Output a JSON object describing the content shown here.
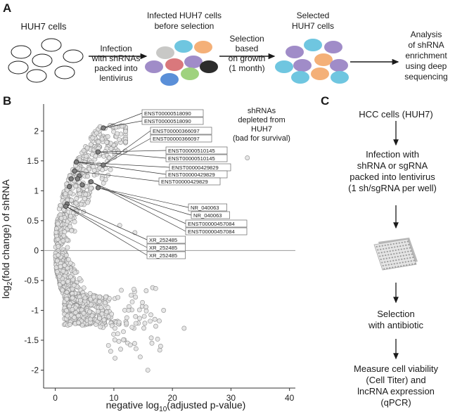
{
  "panel_a": {
    "label": "A",
    "huh7_cells": "HUH7 cells",
    "infection": [
      "Infection",
      "with shRNAs",
      "packed into",
      "lentivirus"
    ],
    "infected_title": [
      "Infected HUH7 cells",
      "before selection"
    ],
    "selection": [
      "Selection",
      "based",
      "on growth",
      "(1 month)"
    ],
    "selected_title": [
      "Selected",
      "HUH7 cells"
    ],
    "analysis": [
      "Analysis",
      "of shRNA",
      "enrichment",
      "using deep",
      "sequencing"
    ]
  },
  "panel_b": {
    "label": "B",
    "annotation": [
      "shRNAs",
      "depleted from HUH7",
      "(bad for survival)"
    ],
    "gene_labels": [
      "ENST00000518090",
      "ENST00000518090",
      "ENST00000366097",
      "ENST00000366097",
      "ENST00000510145",
      "ENST00000510145",
      "ENST00000429829",
      "ENST00000429829",
      "ENST00000429829",
      "NR_040063",
      "NR_040063",
      "ENST00000457084",
      "ENST00000457084",
      "XR_252485",
      "XR_252485",
      "XR_252485"
    ]
  },
  "chart_data": {
    "type": "scatter",
    "title": "",
    "xlabel": "negative log10(adjusted p-value)",
    "ylabel": "log2(fold change) of shRNA",
    "xlim": [
      -2,
      41
    ],
    "ylim": [
      -2.3,
      2.45
    ],
    "xticks": [
      "0",
      "10",
      "20",
      "30",
      "40"
    ],
    "yticks": [
      "2",
      "1.5",
      "1",
      "0.5",
      "0",
      "-0.5",
      "-1",
      "-1.5",
      "-2"
    ],
    "highlighted": [
      {
        "x": 8.2,
        "y": 2.05
      },
      {
        "x": 7.3,
        "y": 1.65
      },
      {
        "x": 8.2,
        "y": 1.43
      },
      {
        "x": 3.6,
        "y": 1.48
      },
      {
        "x": 3.3,
        "y": 1.33
      },
      {
        "x": 2.7,
        "y": 1.2
      },
      {
        "x": 4.1,
        "y": 1.25
      },
      {
        "x": 6.1,
        "y": 1.15
      },
      {
        "x": 4.6,
        "y": 1.1
      },
      {
        "x": 7.3,
        "y": 1.05
      },
      {
        "x": 2.0,
        "y": 0.78
      },
      {
        "x": 1.8,
        "y": 0.74
      },
      {
        "x": 3.8,
        "y": 1.2
      },
      {
        "x": 2.4,
        "y": 1.07
      }
    ],
    "outliers": [
      {
        "x": 32.8,
        "y": 1.55
      },
      {
        "x": 22.0,
        "y": -1.3
      },
      {
        "x": 17.0,
        "y": -1.15
      },
      {
        "x": 16.5,
        "y": -1.55
      },
      {
        "x": 15.8,
        "y": -2.0
      },
      {
        "x": 14.5,
        "y": -1.78
      },
      {
        "x": 12.8,
        "y": -1.58
      },
      {
        "x": 10.2,
        "y": -1.8
      },
      {
        "x": 13.6,
        "y": 0.3
      },
      {
        "x": 11.0,
        "y": 0.42
      },
      {
        "x": 9.2,
        "y": 1.55
      },
      {
        "x": 18.5,
        "y": -1.0
      }
    ]
  },
  "panel_c": {
    "label": "C",
    "step1": "HCC cells (HUH7)",
    "step2": [
      "Infection with",
      "shRNA or sgRNA",
      "packed into lentivirus",
      "(1 sh/sgRNA per well)"
    ],
    "step3": [
      "Selection",
      "with antibiotic"
    ],
    "step4": [
      "Measure cell viability",
      "(Cell Titer) and",
      "lncRNA expression",
      "(qPCR)"
    ]
  },
  "colors": {
    "cell_palette": [
      "#c8c8c6",
      "#6fc6e0",
      "#f4b078",
      "#9fd27e",
      "#a08cc8",
      "#d9787c",
      "#5a8fd8",
      "#2c2c2c"
    ],
    "dot_fill": "#e2e2e2",
    "dot_stroke": "#8c8c8c",
    "highlight_fill": "#808080"
  }
}
